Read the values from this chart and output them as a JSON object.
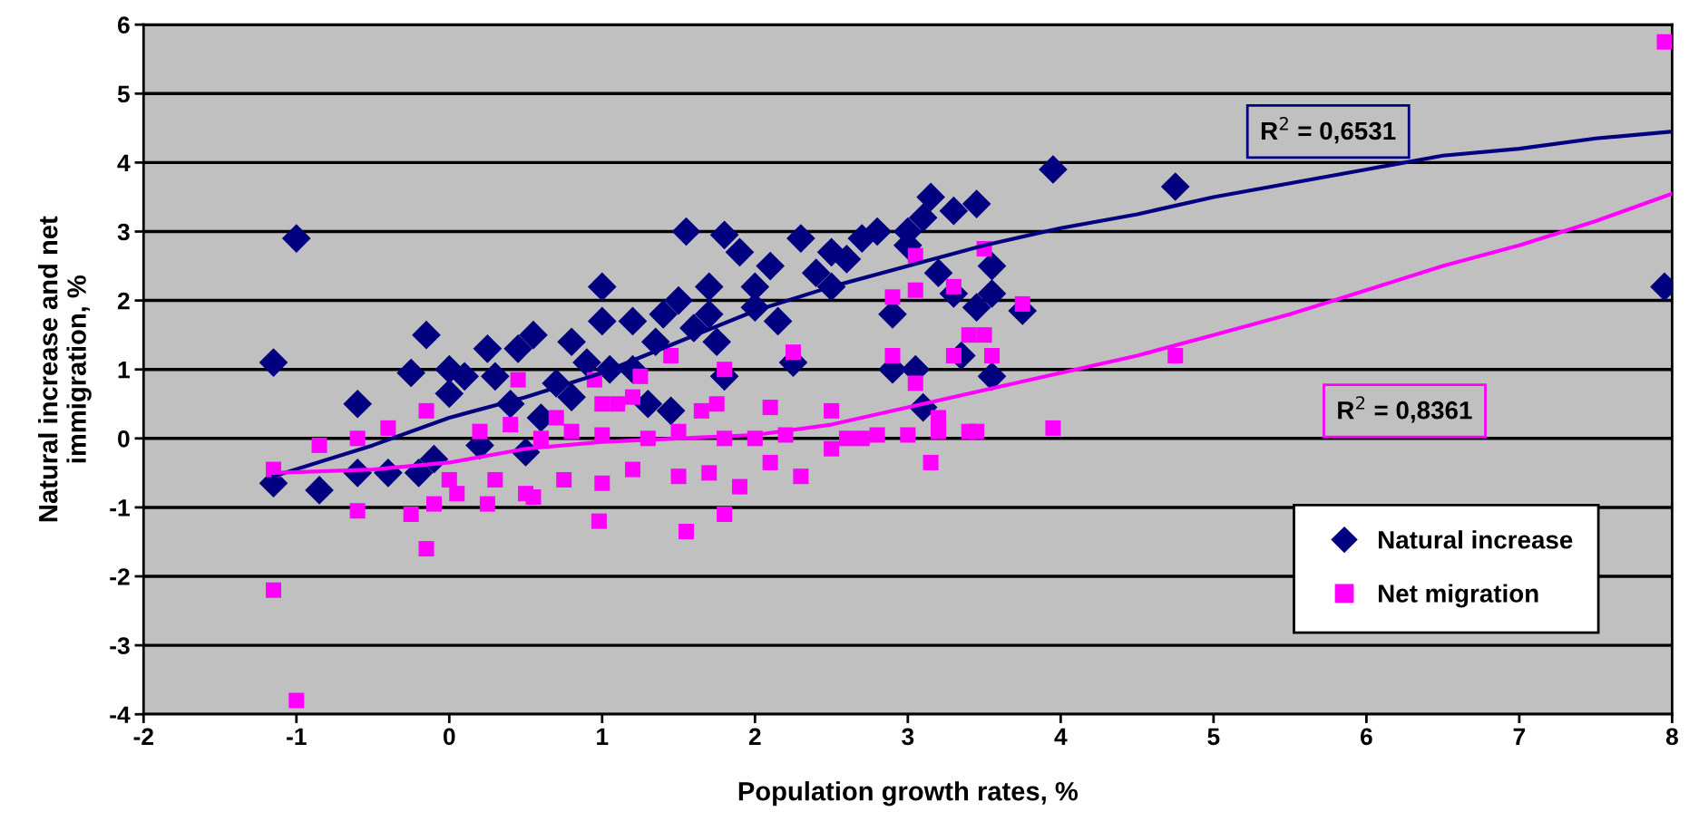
{
  "chart_data": {
    "type": "scatter",
    "xlabel": "Population growth rates, %",
    "ylabel": "Natural increase and net\nimmigration, %",
    "xlim": [
      -2,
      8
    ],
    "ylim": [
      -4,
      6
    ],
    "xticks": [
      -2,
      -1,
      0,
      1,
      2,
      3,
      4,
      5,
      6,
      7,
      8
    ],
    "yticks": [
      -4,
      -3,
      -2,
      -1,
      0,
      1,
      2,
      3,
      4,
      5,
      6
    ],
    "grid": "y",
    "legend": "bottom right",
    "annotations": [
      "R$^{2}$ = 0,6531",
      "R$^{2}$ = 0,8361"
    ],
    "series": [
      {
        "name": "Natural increase",
        "color": "#000080",
        "marker": "diamond",
        "x": [
          -1.15,
          -1.0,
          -1.15,
          -0.85,
          -0.6,
          -0.6,
          -0.4,
          -0.25,
          -0.15,
          -0.2,
          0,
          0,
          0.1,
          0.25,
          0.3,
          0.45,
          0.55,
          0.7,
          0.8,
          0.9,
          1.0,
          1.0,
          1.05,
          1.2,
          1.3,
          1.4,
          1.5,
          1.55,
          1.6,
          1.7,
          1.8,
          1.8,
          1.9,
          2.0,
          2.1,
          2.15,
          2.3,
          2.25,
          2.5,
          2.5,
          2.7,
          2.8,
          3.0,
          3.1,
          3.15,
          3.3,
          3.45,
          2.9,
          2.9,
          3.05,
          3.1,
          3.2,
          3.3,
          3.35,
          3.45,
          3.55,
          3.55,
          3.55,
          3.75,
          3.95,
          4.75,
          7.95,
          0.4,
          0.6,
          0.8,
          1.2,
          1.35,
          1.45,
          1.7,
          1.75,
          2.0,
          2.4,
          2.6,
          3.0,
          0.2,
          -0.1,
          0.5
        ],
        "values": [
          1.1,
          2.9,
          -0.65,
          -0.75,
          0.5,
          -0.5,
          -0.5,
          0.95,
          1.5,
          -0.5,
          1.0,
          0.65,
          0.9,
          1.3,
          0.9,
          1.3,
          1.5,
          0.8,
          1.4,
          1.1,
          2.2,
          1.7,
          1.0,
          1.7,
          0.5,
          1.8,
          2.0,
          3.0,
          1.6,
          2.2,
          2.95,
          0.9,
          2.7,
          2.2,
          2.5,
          1.7,
          2.9,
          1.1,
          2.2,
          2.7,
          2.9,
          3.0,
          3.0,
          3.2,
          3.5,
          3.3,
          3.4,
          1.8,
          1.0,
          1.0,
          0.45,
          2.4,
          2.1,
          1.2,
          1.9,
          2.5,
          2.1,
          0.9,
          1.85,
          3.9,
          3.65,
          2.2,
          0.5,
          0.3,
          0.6,
          1.0,
          1.4,
          0.4,
          1.8,
          1.4,
          1.9,
          2.4,
          2.6,
          2.8,
          -0.1,
          -0.3,
          -0.2
        ]
      },
      {
        "name": "Net migration",
        "color": "#ff00ff",
        "marker": "square",
        "x": [
          -1.15,
          -1.15,
          -1.0,
          -0.85,
          -0.6,
          -0.6,
          -0.4,
          -0.25,
          -0.15,
          -0.15,
          -0.1,
          0,
          0.05,
          0.25,
          0.3,
          0.45,
          0.5,
          0.55,
          0.75,
          0.95,
          1.0,
          0.98,
          1.0,
          1.1,
          1.25,
          1.2,
          1.45,
          1.5,
          1.55,
          1.65,
          1.7,
          1.75,
          1.8,
          1.8,
          1.9,
          2.1,
          2.1,
          2.25,
          2.3,
          2.5,
          2.5,
          2.7,
          2.9,
          2.9,
          3.05,
          3.05,
          3.05,
          3.15,
          3.2,
          3.3,
          3.3,
          3.4,
          3.5,
          3.5,
          3.55,
          3.75,
          3.95,
          4.75,
          7.95,
          0.2,
          0.4,
          0.6,
          0.8,
          1.0,
          1.3,
          1.5,
          1.8,
          2.0,
          2.2,
          2.6,
          2.8,
          3.0,
          3.2,
          3.4,
          3.45,
          0.7,
          1.2
        ],
        "values": [
          -0.45,
          -2.2,
          -3.8,
          -0.1,
          0.0,
          -1.05,
          0.15,
          -1.1,
          -1.6,
          0.4,
          -0.95,
          -0.6,
          -0.8,
          -0.95,
          -0.6,
          0.85,
          -0.8,
          -0.85,
          -0.6,
          0.85,
          0.5,
          -1.2,
          -0.65,
          0.5,
          0.9,
          -0.45,
          1.2,
          -0.55,
          -1.35,
          0.4,
          -0.5,
          0.5,
          -1.1,
          1.0,
          -0.7,
          0.45,
          -0.35,
          1.25,
          -0.55,
          0.4,
          -0.15,
          0.0,
          2.05,
          1.2,
          2.65,
          2.15,
          0.8,
          -0.35,
          0.3,
          2.2,
          1.2,
          1.5,
          2.75,
          1.5,
          1.2,
          1.95,
          0.15,
          1.2,
          5.75,
          0.1,
          0.2,
          0.0,
          0.1,
          0.05,
          0.0,
          0.1,
          0.0,
          0.0,
          0.05,
          0.0,
          0.05,
          0.05,
          0.1,
          0.1,
          0.1,
          0.3,
          0.6
        ]
      },
      {
        "type": "line",
        "color": "#000080",
        "x": [
          -1.15,
          -0.5,
          0,
          0.5,
          1,
          1.5,
          2,
          2.5,
          3,
          3.5,
          4,
          4.5,
          5,
          5.5,
          6,
          6.5,
          7,
          7.5,
          8
        ],
        "values": [
          -0.55,
          -0.1,
          0.3,
          0.6,
          0.95,
          1.4,
          1.85,
          2.2,
          2.5,
          2.8,
          3.05,
          3.25,
          3.5,
          3.7,
          3.9,
          4.1,
          4.2,
          4.35,
          4.45
        ]
      },
      {
        "type": "line",
        "color": "#ff00ff",
        "x": [
          -1.15,
          -0.5,
          0,
          0.5,
          1,
          1.5,
          2,
          2.5,
          3,
          3.5,
          4,
          4.5,
          5,
          5.5,
          6,
          6.5,
          7,
          7.5,
          8
        ],
        "values": [
          -0.5,
          -0.45,
          -0.35,
          -0.15,
          -0.05,
          0.0,
          0.05,
          0.2,
          0.45,
          0.7,
          0.95,
          1.2,
          1.5,
          1.8,
          2.15,
          2.5,
          2.8,
          3.15,
          3.55
        ]
      }
    ]
  }
}
